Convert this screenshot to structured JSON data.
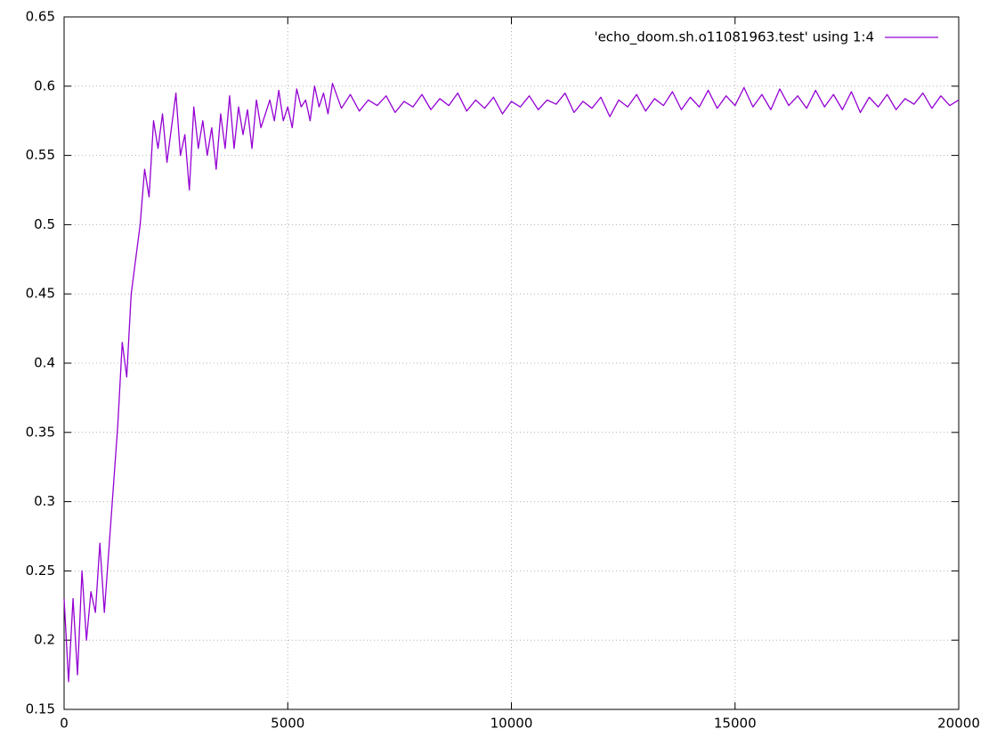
{
  "chart_data": {
    "type": "line",
    "x": [
      0,
      100,
      200,
      300,
      400,
      500,
      600,
      700,
      800,
      900,
      1000,
      1100,
      1200,
      1300,
      1400,
      1500,
      1600,
      1700,
      1800,
      1900,
      2000,
      2100,
      2200,
      2300,
      2400,
      2500,
      2600,
      2700,
      2800,
      2900,
      3000,
      3100,
      3200,
      3300,
      3400,
      3500,
      3600,
      3700,
      3800,
      3900,
      4000,
      4100,
      4200,
      4300,
      4400,
      4500,
      4600,
      4700,
      4800,
      4900,
      5000,
      5100,
      5200,
      5300,
      5400,
      5500,
      5600,
      5700,
      5800,
      5900,
      6000,
      6200,
      6400,
      6600,
      6800,
      7000,
      7200,
      7400,
      7600,
      7800,
      8000,
      8200,
      8400,
      8600,
      8800,
      9000,
      9200,
      9400,
      9600,
      9800,
      10000,
      10200,
      10400,
      10600,
      10800,
      11000,
      11200,
      11400,
      11600,
      11800,
      12000,
      12200,
      12400,
      12600,
      12800,
      13000,
      13200,
      13400,
      13600,
      13800,
      14000,
      14200,
      14400,
      14600,
      14800,
      15000,
      15200,
      15400,
      15600,
      15800,
      16000,
      16200,
      16400,
      16600,
      16800,
      17000,
      17200,
      17400,
      17600,
      17800,
      18000,
      18200,
      18400,
      18600,
      18800,
      19000,
      19200,
      19400,
      19600,
      19800,
      20000
    ],
    "series": [
      {
        "name": "'echo_doom.sh.o11081963.test' using 1:4",
        "color": "#9400d3",
        "values": [
          0.23,
          0.17,
          0.23,
          0.175,
          0.25,
          0.2,
          0.235,
          0.22,
          0.27,
          0.22,
          0.265,
          0.31,
          0.355,
          0.415,
          0.39,
          0.45,
          0.475,
          0.5,
          0.54,
          0.52,
          0.575,
          0.555,
          0.58,
          0.545,
          0.57,
          0.595,
          0.55,
          0.565,
          0.525,
          0.585,
          0.555,
          0.575,
          0.55,
          0.57,
          0.54,
          0.58,
          0.555,
          0.593,
          0.555,
          0.585,
          0.565,
          0.583,
          0.555,
          0.59,
          0.57,
          0.58,
          0.59,
          0.575,
          0.597,
          0.575,
          0.585,
          0.57,
          0.598,
          0.585,
          0.59,
          0.575,
          0.6,
          0.585,
          0.595,
          0.58,
          0.602,
          0.584,
          0.594,
          0.582,
          0.59,
          0.586,
          0.593,
          0.581,
          0.589,
          0.585,
          0.594,
          0.583,
          0.591,
          0.586,
          0.595,
          0.582,
          0.59,
          0.584,
          0.592,
          0.58,
          0.589,
          0.585,
          0.593,
          0.583,
          0.59,
          0.587,
          0.595,
          0.581,
          0.589,
          0.584,
          0.592,
          0.578,
          0.59,
          0.585,
          0.594,
          0.582,
          0.591,
          0.586,
          0.596,
          0.583,
          0.592,
          0.585,
          0.597,
          0.584,
          0.593,
          0.586,
          0.599,
          0.585,
          0.594,
          0.583,
          0.598,
          0.586,
          0.593,
          0.584,
          0.597,
          0.585,
          0.594,
          0.583,
          0.596,
          0.581,
          0.592,
          0.585,
          0.594,
          0.583,
          0.591,
          0.587,
          0.595,
          0.584,
          0.593,
          0.586,
          0.59
        ]
      }
    ],
    "xlim": [
      0,
      20000
    ],
    "xticks": [
      0,
      5000,
      10000,
      15000,
      20000
    ],
    "ylim": [
      0.15,
      0.65
    ],
    "yticks": [
      0.15,
      0.2,
      0.25,
      0.3,
      0.35,
      0.4,
      0.45,
      0.5,
      0.55,
      0.6,
      0.65
    ],
    "grid": true,
    "legend": "top-right"
  }
}
